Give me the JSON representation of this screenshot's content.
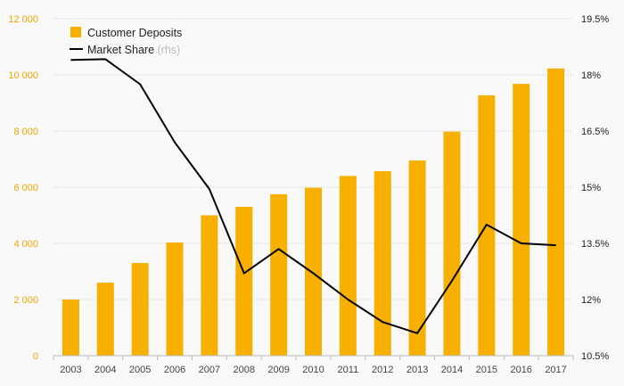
{
  "chart_data": {
    "type": "bar+line",
    "categories": [
      "2003",
      "2004",
      "2005",
      "2006",
      "2007",
      "2008",
      "2009",
      "2010",
      "2011",
      "2012",
      "2013",
      "2014",
      "2015",
      "2016",
      "2017"
    ],
    "series": [
      {
        "name": "Customer Deposits",
        "type": "bar",
        "axis": "left",
        "color": "#f7b000",
        "values": [
          2000,
          2600,
          3300,
          4030,
          5000,
          5300,
          5750,
          5980,
          6400,
          6570,
          6950,
          7980,
          9270,
          9680,
          10230
        ]
      },
      {
        "name": "Market Share",
        "type": "line",
        "axis": "right",
        "color": "#000000",
        "values": [
          18.4,
          18.42,
          17.75,
          16.2,
          14.95,
          12.7,
          13.35,
          12.7,
          12.0,
          11.4,
          11.1,
          12.5,
          14.0,
          13.5,
          13.45
        ]
      }
    ],
    "legend": {
      "bar_label": "Customer Deposits",
      "line_label": "Market Share",
      "line_suffix": "(rhs)",
      "placement": "top-left"
    },
    "y_left": {
      "min": 0,
      "max": 12000,
      "ticks": [
        0,
        2000,
        4000,
        6000,
        8000,
        10000,
        12000
      ],
      "tick_labels": [
        "0",
        "2 000",
        "4 000",
        "6 000",
        "8 000",
        "10 000",
        "12 000"
      ],
      "color": "#f0a500"
    },
    "y_right": {
      "min": 10.5,
      "max": 19.5,
      "ticks": [
        10.5,
        12,
        13.5,
        15,
        16.5,
        18,
        19.5
      ],
      "tick_labels": [
        "10.5%",
        "12%",
        "13.5%",
        "15%",
        "16.5%",
        "18%",
        "19.5%"
      ]
    },
    "grid": true
  }
}
